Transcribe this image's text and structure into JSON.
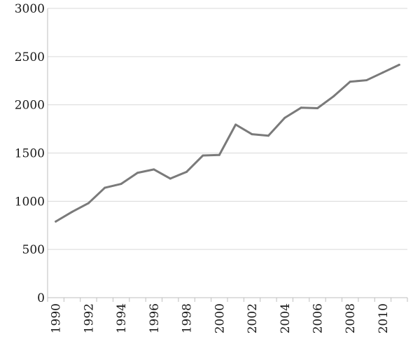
{
  "chart_data": {
    "type": "line",
    "x": [
      1990,
      1991,
      1992,
      1993,
      1994,
      1995,
      1996,
      1997,
      1998,
      1999,
      2000,
      2001,
      2002,
      2003,
      2004,
      2005,
      2006,
      2007,
      2008,
      2009,
      2010,
      2011
    ],
    "series": [
      {
        "values": [
          790,
          890,
          980,
          1140,
          1180,
          1295,
          1330,
          1235,
          1305,
          1475,
          1480,
          1795,
          1695,
          1680,
          1865,
          1970,
          1965,
          2090,
          2240,
          2255,
          2335,
          2415
        ],
        "color": "#7a7a7a"
      }
    ],
    "ylim": [
      0,
      3000
    ],
    "yticks": [
      0,
      500,
      1000,
      1500,
      2000,
      2500,
      3000
    ],
    "xtick_labels": [
      "1990",
      "1992",
      "1994",
      "1996",
      "1998",
      "2000",
      "2002",
      "2004",
      "2006",
      "2008",
      "2010"
    ],
    "grid": true,
    "legend": "none"
  }
}
